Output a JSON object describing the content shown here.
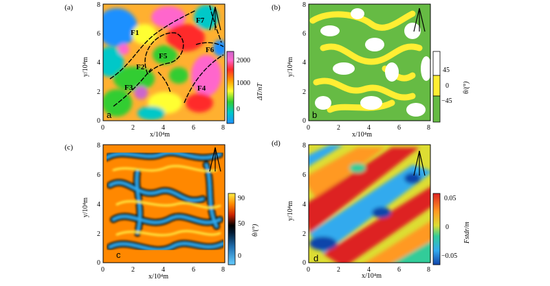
{
  "panels": [
    {
      "id": "a",
      "label": "(a)",
      "inner_label": "a",
      "xlabel": "x/10⁴m",
      "ylabel": "y/10⁴m",
      "x_ticks": [
        "0",
        "2",
        "4",
        "6",
        "8"
      ],
      "y_ticks": [
        "0",
        "2",
        "4",
        "6",
        "8"
      ],
      "colorbar": {
        "label": "ΔT/nT",
        "ticks": [
          "2000",
          "1000",
          "0"
        ]
      },
      "faults": [
        "F1",
        "F2",
        "F3",
        "F4",
        "F5",
        "F6",
        "F7"
      ]
    },
    {
      "id": "b",
      "label": "(b)",
      "inner_label": "b",
      "xlabel": "x/10⁴m",
      "ylabel": "y/10⁴m",
      "x_ticks": [
        "0",
        "2",
        "4",
        "6",
        "8"
      ],
      "y_ticks": [
        "0",
        "2",
        "4",
        "6",
        "8"
      ],
      "colorbar": {
        "label": "θ/(°)",
        "ticks": [
          "45",
          "0",
          "−45"
        ]
      }
    },
    {
      "id": "c",
      "label": "(c)",
      "inner_label": "c",
      "xlabel": "x/10⁴m",
      "ylabel": "y/10⁴m",
      "x_ticks": [
        "0",
        "2",
        "4",
        "6",
        "8"
      ],
      "y_ticks": [
        "0",
        "2",
        "4",
        "6",
        "8"
      ],
      "colorbar": {
        "label": "θ/(°)",
        "ticks": [
          "90",
          "50",
          "0"
        ]
      }
    },
    {
      "id": "d",
      "label": "(d)",
      "inner_label": "d",
      "xlabel": "x/10⁴m",
      "ylabel": "y/10⁴m",
      "x_ticks": [
        "0",
        "2",
        "4",
        "6",
        "8"
      ],
      "y_ticks": [
        "0",
        "2",
        "4",
        "6",
        "8"
      ],
      "colorbar": {
        "label": "Fstdr/m",
        "ticks": [
          "0.05",
          "0",
          "−0.05"
        ]
      }
    }
  ],
  "north_arrow": "N",
  "colors": {
    "panel_a": [
      "#1e90ff",
      "#00c8c8",
      "#32cd32",
      "#ffff33",
      "#ff9900",
      "#ff2a2a",
      "#ff66cc",
      "#cc66cc"
    ],
    "panel_b": [
      "#ffffff",
      "#ffff33",
      "#66bb44"
    ],
    "panel_c": [
      "#33aaee",
      "#003366",
      "#000000",
      "#cc2200",
      "#ff8800",
      "#ffee44"
    ],
    "panel_d": [
      "#1144aa",
      "#33aaee",
      "#33cc99",
      "#dddd33",
      "#ff9922",
      "#dd2222"
    ]
  }
}
